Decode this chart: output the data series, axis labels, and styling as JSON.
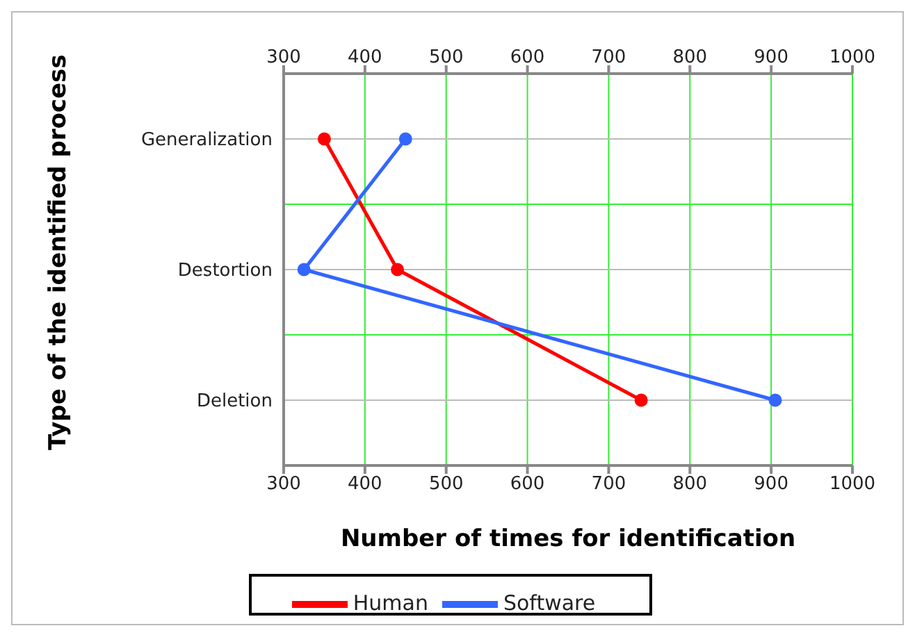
{
  "chart_data": {
    "type": "line",
    "orientation": "horizontal",
    "xlabel": "Number of times for identification",
    "ylabel": "Type of the identified process",
    "categories": [
      "Generalization",
      "Destortion",
      "Deletion"
    ],
    "series": [
      {
        "name": "Human",
        "color": "#ff0000",
        "values": [
          350,
          440,
          740
        ]
      },
      {
        "name": "Software",
        "color": "#3366ff",
        "values": [
          450,
          325,
          905
        ]
      }
    ],
    "xlim": [
      300,
      1000
    ],
    "xticks": [
      300,
      400,
      500,
      600,
      700,
      800,
      900,
      1000
    ],
    "x2lim": [
      300,
      1000
    ],
    "x2ticks": [
      300,
      400,
      500,
      600,
      700,
      800,
      900,
      1000
    ],
    "grid": true,
    "legend": "bottom",
    "marker": "circle",
    "line_style": "solid"
  }
}
